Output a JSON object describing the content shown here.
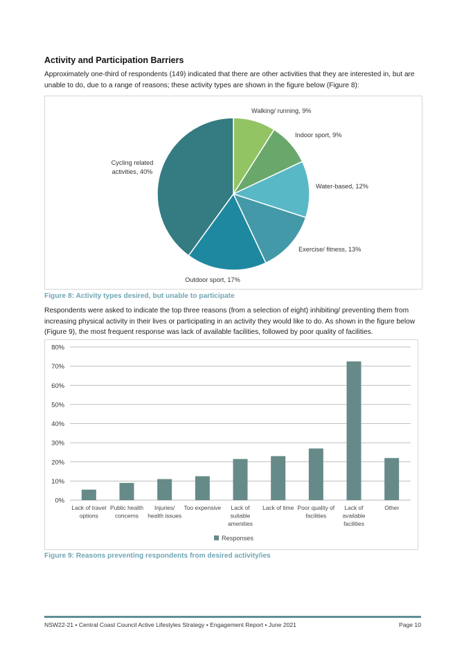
{
  "section": {
    "title": "Activity and Participation Barriers",
    "intro": "Approximately one-third of respondents (149) indicated that there are other activities that they are interested in, but are unable to do, due to a range of reasons; these activity types are shown in the figure below (Figure 8):"
  },
  "figure8": {
    "caption": "Figure 8: Activity types desired, but unable to participate",
    "labels": [
      "Walking/ running, 9%",
      "Indoor sport, 9%",
      "Water-based, 12%",
      "Exercise/ fitness, 13%",
      "Outdoor sport, 17%",
      "Cycling related",
      "activities, 40%"
    ]
  },
  "paragraph2": "Respondents were asked to indicate the top three reasons (from a selection of eight) inhibiting/ preventing them from increasing physical activity in their lives or participating in an activity they would like to do. As shown in the figure below (Figure 9), the most frequent response was lack of available facilities, followed by poor quality of facilities.",
  "figure9": {
    "caption": "Figure 9: Reasons preventing respondents from desired activity/ies",
    "x_labels": [
      [
        "Lack of travel",
        "options"
      ],
      [
        "Public health",
        "concerns"
      ],
      [
        "Injuries/",
        "health issues"
      ],
      [
        "Too expensive"
      ],
      [
        "Lack of",
        "suitable",
        "amenities"
      ],
      [
        "Lack of time"
      ],
      [
        "Poor quality of",
        "facilities"
      ],
      [
        "Lack of",
        "available",
        "facilities"
      ],
      [
        "Other"
      ]
    ],
    "y_ticks": [
      "0%",
      "10%",
      "20%",
      "30%",
      "40%",
      "50%",
      "60%",
      "70%",
      "80%"
    ],
    "legend": "Responses"
  },
  "footer": {
    "text": "NSW22-21 • Central Coast Council Active Lifestyles Strategy • Engagement Report • June 2021",
    "page": "Page 10"
  },
  "colors": {
    "bar": "#668a88",
    "caption": "#6fa5b3",
    "pie": [
      "#92c464",
      "#6aa76a",
      "#59b8c6",
      "#4499a8",
      "#1e88a0",
      "#357b82"
    ]
  },
  "chart_data": [
    {
      "type": "pie",
      "categories": [
        "Walking/ running",
        "Indoor sport",
        "Water-based",
        "Exercise/ fitness",
        "Outdoor sport",
        "Cycling related activities"
      ],
      "values": [
        9,
        9,
        12,
        13,
        17,
        40
      ],
      "unit": "%"
    },
    {
      "type": "bar",
      "categories": [
        "Lack of travel options",
        "Public health concerns",
        "Injuries/ health issues",
        "Too expensive",
        "Lack of suitable amenities",
        "Lack of time",
        "Poor quality of facilities",
        "Lack of available facilities",
        "Other"
      ],
      "series": [
        {
          "name": "Responses",
          "values": [
            5.5,
            9,
            11,
            12.5,
            21.5,
            23,
            27,
            72.5,
            22
          ]
        }
      ],
      "ylim": [
        0,
        80
      ],
      "grid": true,
      "legend": "bottom"
    }
  ]
}
